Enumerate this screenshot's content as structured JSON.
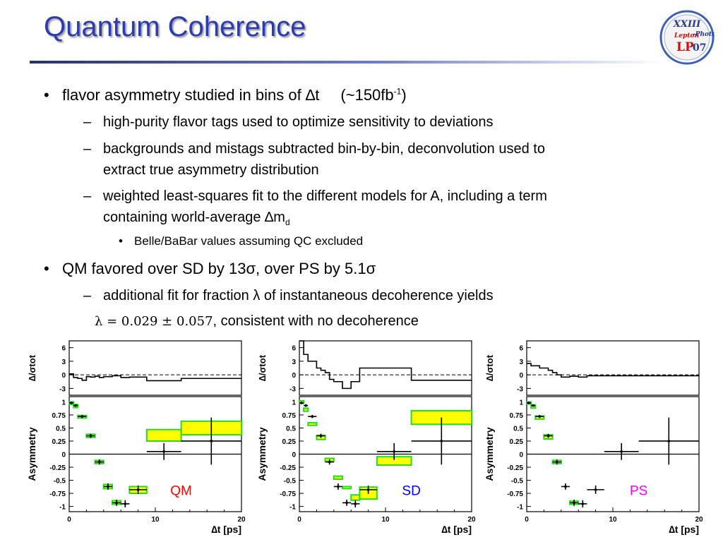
{
  "slide": {
    "title": "Quantum Coherence",
    "logo": {
      "line1": "XXIII",
      "line2a": "Lepton",
      "line2b": "-Photon",
      "line3a": "LP",
      "line3b": "07"
    },
    "bullets": [
      {
        "level": 1,
        "pre": "flavor asymmetry studied in bins of ",
        "delta": "∆",
        "post": "t",
        "extra": "(~150fb",
        "sup": "-1",
        "close": ")"
      },
      {
        "level": 2,
        "text": "high-purity flavor tags used to optimize sensitivity to deviations"
      },
      {
        "level": 2,
        "line1": "backgrounds and mistags subtracted bin-by-bin, deconvolution used to",
        "line2": "extract true asymmetry distribution"
      },
      {
        "level": 2,
        "line1": "weighted least-squares fit to the different models for A, including a term",
        "line2pre": "containing world-average ",
        "delta": "∆",
        "m": "m",
        "sub": "d"
      },
      {
        "level": 3,
        "text": "Belle/BaBar values assuming QC excluded"
      },
      {
        "level": 1,
        "pre": "QM favored over SD by 13",
        "sigma": "σ",
        "mid": ", over PS by 5.1",
        "sigma2": "σ"
      },
      {
        "level": 2,
        "pre": "additional fit for fraction ",
        "lambda": "λ",
        "post": " of instantaneous decoherence yields"
      },
      {
        "level": 2,
        "formula": "λ = 0.029 ± 0.057",
        "post": ", consistent with no decoherence"
      }
    ],
    "bullet_chars": {
      "l1": "•",
      "l2": "–",
      "l3": "•"
    }
  },
  "chart_data": [
    {
      "type": "line",
      "model_label": "QM",
      "model_color": "#ff0000",
      "xlabel": "∆t [ps]",
      "top_ylabel": "∆/σtot",
      "ylabel": "Asymmetry",
      "xlim": [
        0,
        20
      ],
      "x_ticks": [
        "0",
        "10",
        "20"
      ],
      "top_ylim": [
        -4.5,
        7.5
      ],
      "top_ticks": [
        "6",
        "3",
        "0",
        "-3"
      ],
      "ylim": [
        -1.1,
        1.1
      ],
      "y_ticks": [
        "1",
        "0.75",
        "0.5",
        "0.25",
        "0",
        "-0.25",
        "-0.5",
        "-0.75",
        "-1"
      ],
      "residual_edges": [
        0,
        0.5,
        1,
        1.5,
        2,
        2.5,
        3,
        3.5,
        4,
        5,
        6,
        7,
        9,
        13,
        20
      ],
      "residual_values": [
        0.2,
        -0.6,
        -0.8,
        -1.2,
        -0.4,
        -0.5,
        -0.3,
        -0.6,
        -0.4,
        -0.2,
        -0.6,
        -0.5,
        -1.3,
        -0.8
      ],
      "data_points": [
        {
          "x": 0.25,
          "y": 0.98,
          "xerr": 0.25,
          "yerr": 0.02
        },
        {
          "x": 0.75,
          "y": 0.93,
          "xerr": 0.25,
          "yerr": 0.02
        },
        {
          "x": 1.5,
          "y": 0.72,
          "xerr": 0.5,
          "yerr": 0.03
        },
        {
          "x": 2.5,
          "y": 0.35,
          "xerr": 0.5,
          "yerr": 0.04
        },
        {
          "x": 3.5,
          "y": -0.15,
          "xerr": 0.5,
          "yerr": 0.05
        },
        {
          "x": 4.5,
          "y": -0.62,
          "xerr": 0.5,
          "yerr": 0.06
        },
        {
          "x": 5.5,
          "y": -0.93,
          "xerr": 0.5,
          "yerr": 0.06
        },
        {
          "x": 6.5,
          "y": -0.95,
          "xerr": 0.5,
          "yerr": 0.07
        },
        {
          "x": 8,
          "y": -0.68,
          "xerr": 1,
          "yerr": 0.08
        },
        {
          "x": 11,
          "y": 0.05,
          "xerr": 2,
          "yerr": 0.16
        },
        {
          "x": 16.5,
          "y": 0.25,
          "xerr": 3.5,
          "yerr": 0.45
        }
      ],
      "model_boxes": [
        {
          "x0": 0,
          "x1": 0.5,
          "y0": 0.95,
          "y1": 1.0
        },
        {
          "x0": 0.5,
          "x1": 1.0,
          "y0": 0.89,
          "y1": 0.95
        },
        {
          "x0": 1.0,
          "x1": 2.0,
          "y0": 0.69,
          "y1": 0.74
        },
        {
          "x0": 2.0,
          "x1": 3.0,
          "y0": 0.32,
          "y1": 0.38
        },
        {
          "x0": 3.0,
          "x1": 4.0,
          "y0": -0.18,
          "y1": -0.12
        },
        {
          "x0": 4.0,
          "x1": 5.0,
          "y0": -0.66,
          "y1": -0.58
        },
        {
          "x0": 5.0,
          "x1": 6.0,
          "y0": -0.96,
          "y1": -0.89
        },
        {
          "x0": 7.0,
          "x1": 9.0,
          "y0": -0.75,
          "y1": -0.62
        },
        {
          "x0": 9.0,
          "x1": 13.0,
          "y0": 0.25,
          "y1": 0.47
        },
        {
          "x0": 13.0,
          "x1": 20.0,
          "y0": 0.37,
          "y1": 0.63
        }
      ]
    },
    {
      "type": "line",
      "model_label": "SD",
      "model_color": "#0000ff",
      "xlabel": "∆t [ps]",
      "top_ylabel": "∆/σtot",
      "ylabel": "Asymmetry",
      "xlim": [
        0,
        20
      ],
      "x_ticks": [
        "0",
        "10",
        "20"
      ],
      "top_ylim": [
        -4.5,
        7.5
      ],
      "top_ticks": [
        "6",
        "3",
        "0",
        "-3"
      ],
      "ylim": [
        -1.1,
        1.1
      ],
      "y_ticks": [
        "1",
        "0.75",
        "0.5",
        "0.25",
        "0",
        "-0.25",
        "-0.5",
        "-0.75",
        "-1"
      ],
      "residual_edges": [
        0,
        0.5,
        1,
        1.5,
        2,
        2.5,
        3,
        3.5,
        4,
        5,
        6,
        7,
        9,
        13,
        20
      ],
      "residual_values": [
        7.5,
        4.5,
        3.0,
        3.0,
        1.5,
        1.0,
        0.5,
        -1.0,
        -1.5,
        -3.0,
        -1.5,
        1.5,
        1.5,
        -1.2
      ],
      "data_points": [
        {
          "x": 0.25,
          "y": 0.98,
          "xerr": 0.25,
          "yerr": 0.02
        },
        {
          "x": 0.75,
          "y": 0.93,
          "xerr": 0.25,
          "yerr": 0.02
        },
        {
          "x": 1.5,
          "y": 0.72,
          "xerr": 0.5,
          "yerr": 0.03
        },
        {
          "x": 2.5,
          "y": 0.35,
          "xerr": 0.5,
          "yerr": 0.04
        },
        {
          "x": 3.5,
          "y": -0.15,
          "xerr": 0.5,
          "yerr": 0.05
        },
        {
          "x": 4.5,
          "y": -0.62,
          "xerr": 0.5,
          "yerr": 0.06
        },
        {
          "x": 5.5,
          "y": -0.93,
          "xerr": 0.5,
          "yerr": 0.06
        },
        {
          "x": 6.5,
          "y": -0.95,
          "xerr": 0.5,
          "yerr": 0.07
        },
        {
          "x": 8,
          "y": -0.68,
          "xerr": 1,
          "yerr": 0.08
        },
        {
          "x": 11,
          "y": 0.05,
          "xerr": 2,
          "yerr": 0.16
        },
        {
          "x": 16.5,
          "y": 0.25,
          "xerr": 3.5,
          "yerr": 0.45
        }
      ],
      "model_boxes": [
        {
          "x0": 0,
          "x1": 0.5,
          "y0": 0.97,
          "y1": 1.02
        },
        {
          "x0": 0.5,
          "x1": 1.0,
          "y0": 0.82,
          "y1": 0.88
        },
        {
          "x0": 1.0,
          "x1": 2.0,
          "y0": 0.55,
          "y1": 0.6
        },
        {
          "x0": 2.0,
          "x1": 3.0,
          "y0": 0.28,
          "y1": 0.36
        },
        {
          "x0": 3.0,
          "x1": 4.0,
          "y0": -0.14,
          "y1": -0.08
        },
        {
          "x0": 4.0,
          "x1": 5.0,
          "y0": -0.48,
          "y1": -0.42
        },
        {
          "x0": 5.0,
          "x1": 6.0,
          "y0": -0.66,
          "y1": -0.62
        },
        {
          "x0": 6.0,
          "x1": 7.0,
          "y0": -0.88,
          "y1": -0.78
        },
        {
          "x0": 7.0,
          "x1": 9.0,
          "y0": -0.86,
          "y1": -0.63
        },
        {
          "x0": 9.0,
          "x1": 13.0,
          "y0": -0.21,
          "y1": -0.05
        },
        {
          "x0": 13.0,
          "x1": 20.0,
          "y0": 0.57,
          "y1": 0.83
        }
      ]
    },
    {
      "type": "line",
      "model_label": "PS",
      "model_color": "#ff00ff",
      "xlabel": "∆t [ps]",
      "top_ylabel": "∆/σtot",
      "ylabel": "Asymmetry",
      "xlim": [
        0,
        20
      ],
      "x_ticks": [
        "0",
        "10",
        "20"
      ],
      "top_ylim": [
        -4.5,
        7.5
      ],
      "top_ticks": [
        "6",
        "3",
        "0",
        "-3"
      ],
      "ylim": [
        -1.1,
        1.1
      ],
      "y_ticks": [
        "1",
        "0.75",
        "0.5",
        "0.25",
        "0",
        "-0.25",
        "-0.5",
        "-0.75",
        "-1"
      ],
      "residual_edges": [
        0,
        0.5,
        1,
        1.5,
        2,
        2.5,
        3,
        3.5,
        4,
        5,
        6,
        7,
        9,
        13,
        20
      ],
      "residual_values": [
        2.5,
        2.0,
        2.0,
        1.5,
        1.5,
        1.0,
        0.5,
        0.0,
        -0.5,
        -0.3,
        -0.5,
        -0.2,
        -0.2,
        -0.2
      ],
      "data_points": [
        {
          "x": 0.25,
          "y": 0.98,
          "xerr": 0.25,
          "yerr": 0.02
        },
        {
          "x": 0.75,
          "y": 0.93,
          "xerr": 0.25,
          "yerr": 0.02
        },
        {
          "x": 1.5,
          "y": 0.72,
          "xerr": 0.5,
          "yerr": 0.03
        },
        {
          "x": 2.5,
          "y": 0.35,
          "xerr": 0.5,
          "yerr": 0.04
        },
        {
          "x": 3.5,
          "y": -0.15,
          "xerr": 0.5,
          "yerr": 0.05
        },
        {
          "x": 4.5,
          "y": -0.62,
          "xerr": 0.5,
          "yerr": 0.06
        },
        {
          "x": 5.5,
          "y": -0.93,
          "xerr": 0.5,
          "yerr": 0.06
        },
        {
          "x": 6.5,
          "y": -0.95,
          "xerr": 0.5,
          "yerr": 0.07
        },
        {
          "x": 8,
          "y": -0.68,
          "xerr": 1,
          "yerr": 0.08
        },
        {
          "x": 11,
          "y": 0.05,
          "xerr": 2,
          "yerr": 0.16
        },
        {
          "x": 16.5,
          "y": 0.25,
          "xerr": 3.5,
          "yerr": 0.45
        }
      ],
      "model_boxes": [
        {
          "x0": 0,
          "x1": 0.5,
          "y0": 0.96,
          "y1": 1.0
        },
        {
          "x0": 0.5,
          "x1": 1.0,
          "y0": 0.88,
          "y1": 0.94
        },
        {
          "x0": 1.0,
          "x1": 2.0,
          "y0": 0.67,
          "y1": 0.73
        },
        {
          "x0": 2.0,
          "x1": 3.0,
          "y0": 0.29,
          "y1": 0.37
        },
        {
          "x0": 3.0,
          "x1": 4.0,
          "y0": -0.18,
          "y1": -0.12
        },
        {
          "x0": 5.0,
          "x1": 6.0,
          "y0": -0.96,
          "y1": -0.9
        }
      ]
    }
  ]
}
